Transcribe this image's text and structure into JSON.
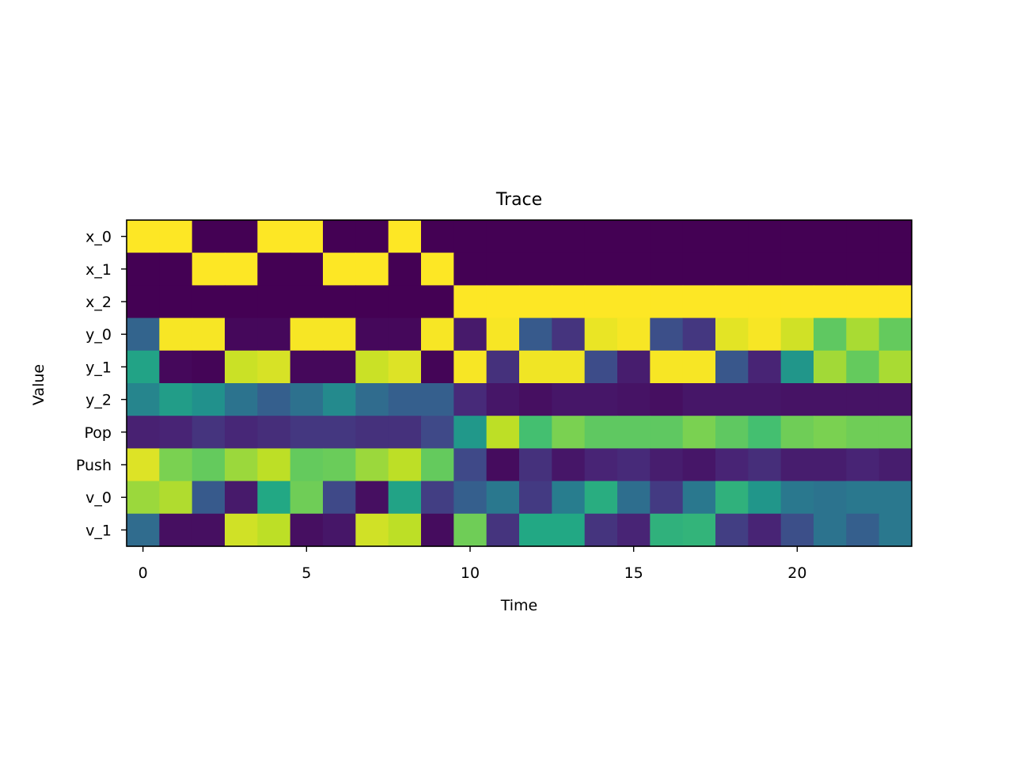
{
  "chart_data": {
    "type": "heatmap",
    "title": "Trace",
    "xlabel": "Time",
    "ylabel": "Value",
    "rows": [
      "x_0",
      "x_1",
      "x_2",
      "y_0",
      "y_1",
      "y_2",
      "Pop",
      "Push",
      "v_0",
      "v_1"
    ],
    "x": [
      0,
      1,
      2,
      3,
      4,
      5,
      6,
      7,
      8,
      9,
      10,
      11,
      12,
      13,
      14,
      15,
      16,
      17,
      18,
      19,
      20,
      21,
      22,
      23
    ],
    "xticks": [
      0,
      5,
      10,
      15,
      20
    ],
    "xtick_labels": [
      "0",
      "5",
      "10",
      "15",
      "20"
    ],
    "colormap": "viridis",
    "vmin": 0,
    "vmax": 1,
    "values": [
      [
        1,
        1,
        0,
        0,
        1,
        1,
        0,
        0,
        1,
        0,
        0,
        0,
        0,
        0,
        0,
        0,
        0,
        0,
        0,
        0,
        0,
        0,
        0,
        0
      ],
      [
        0,
        0,
        1,
        1,
        0,
        0,
        1,
        1,
        0,
        1,
        0,
        0,
        0,
        0,
        0,
        0,
        0,
        0,
        0,
        0,
        0,
        0,
        0,
        0
      ],
      [
        0,
        0,
        0,
        0,
        0,
        0,
        0,
        0,
        0,
        0,
        1,
        1,
        1,
        1,
        1,
        1,
        1,
        1,
        1,
        1,
        1,
        1,
        1,
        1
      ],
      [
        0.32,
        0.99,
        0.99,
        0.02,
        0.02,
        0.99,
        0.99,
        0.02,
        0.02,
        0.99,
        0.07,
        0.99,
        0.28,
        0.15,
        0.97,
        0.99,
        0.24,
        0.16,
        0.96,
        0.99,
        0.93,
        0.75,
        0.87,
        0.76
      ],
      [
        0.58,
        0.02,
        0.01,
        0.92,
        0.94,
        0.02,
        0.02,
        0.92,
        0.95,
        0.01,
        0.99,
        0.14,
        0.98,
        0.98,
        0.23,
        0.08,
        0.99,
        0.99,
        0.27,
        0.1,
        0.52,
        0.86,
        0.76,
        0.87
      ],
      [
        0.45,
        0.55,
        0.5,
        0.38,
        0.3,
        0.37,
        0.47,
        0.35,
        0.3,
        0.3,
        0.12,
        0.06,
        0.04,
        0.06,
        0.06,
        0.05,
        0.04,
        0.06,
        0.06,
        0.06,
        0.05,
        0.05,
        0.05,
        0.05
      ],
      [
        0.09,
        0.1,
        0.15,
        0.11,
        0.13,
        0.16,
        0.16,
        0.14,
        0.14,
        0.22,
        0.53,
        0.9,
        0.7,
        0.8,
        0.75,
        0.75,
        0.75,
        0.8,
        0.75,
        0.7,
        0.78,
        0.8,
        0.78,
        0.78
      ],
      [
        0.95,
        0.8,
        0.76,
        0.85,
        0.9,
        0.76,
        0.77,
        0.85,
        0.9,
        0.76,
        0.22,
        0.03,
        0.14,
        0.06,
        0.1,
        0.12,
        0.08,
        0.06,
        0.1,
        0.13,
        0.08,
        0.08,
        0.1,
        0.08
      ],
      [
        0.85,
        0.88,
        0.28,
        0.07,
        0.6,
        0.78,
        0.22,
        0.04,
        0.58,
        0.18,
        0.3,
        0.4,
        0.17,
        0.42,
        0.62,
        0.36,
        0.17,
        0.4,
        0.64,
        0.52,
        0.4,
        0.38,
        0.4,
        0.4
      ],
      [
        0.35,
        0.04,
        0.04,
        0.93,
        0.9,
        0.04,
        0.06,
        0.93,
        0.9,
        0.03,
        0.78,
        0.15,
        0.6,
        0.6,
        0.15,
        0.1,
        0.64,
        0.65,
        0.18,
        0.1,
        0.24,
        0.38,
        0.3,
        0.4
      ]
    ]
  }
}
